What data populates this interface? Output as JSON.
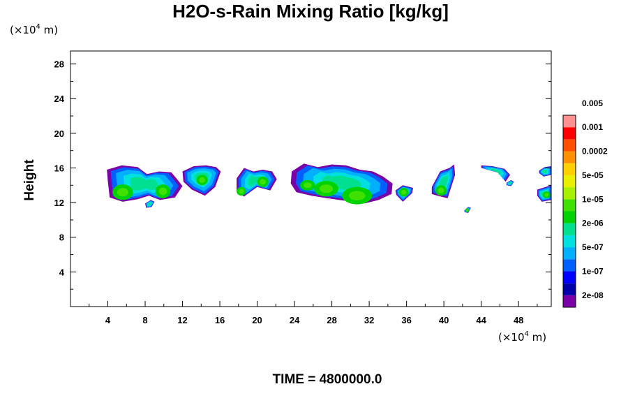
{
  "chart_data": {
    "type": "heatmap",
    "title": "H2O-s-Rain Mixing Ratio [kg/kg]",
    "ylabel": "Height",
    "unit_prefix": "(×10",
    "unit_exp": "4",
    "unit_suffix": " m)",
    "xlim": [
      0,
      51.5
    ],
    "ylim": [
      0,
      29.5
    ],
    "x_ticks": [
      4,
      8,
      12,
      16,
      20,
      24,
      28,
      32,
      36,
      40,
      44,
      48
    ],
    "y_ticks": [
      4,
      8,
      12,
      16,
      20,
      24,
      28
    ],
    "time_label": "TIME = 4800000.0",
    "legend": {
      "labels": [
        "2e-08",
        "1e-07",
        "5e-07",
        "2e-06",
        "1e-05",
        "5e-05",
        "0.0002",
        "0.001",
        "0.005"
      ],
      "colors": [
        "#7a00a8",
        "#0000aa",
        "#0000ff",
        "#0060ff",
        "#00b0ff",
        "#00e0e0",
        "#00e090",
        "#00d200",
        "#40e000",
        "#a8f000",
        "#e8f000",
        "#ffd000",
        "#ff9000",
        "#ff5000",
        "#ff0000",
        "#ff9090"
      ]
    },
    "clouds": [
      {
        "x": [
          3.9,
          5.5,
          7.2,
          8.2,
          9.5,
          10.8,
          11.5,
          12.0,
          11.2,
          9.6,
          8.4,
          7.2,
          5.6,
          4.2,
          4.0
        ],
        "ytop": [
          15.8,
          16.3,
          16.1,
          15.3,
          15.6,
          15.5,
          14.6,
          13.9,
          12.6,
          12.3,
          12.8,
          12.4,
          12.1,
          12.6,
          14.5
        ],
        "core": [
          [
            5.6,
            13.2,
            1.1,
            0.9
          ],
          [
            9.9,
            13.3,
            0.8,
            0.8
          ]
        ]
      },
      {
        "x": [
          12.0,
          13.2,
          14.5,
          15.6,
          16.1,
          15.5,
          14.4,
          13.0,
          12.1
        ],
        "ytop": [
          15.6,
          16.2,
          16.3,
          16.1,
          15.6,
          13.8,
          12.8,
          13.5,
          14.4
        ],
        "core": [
          [
            14.1,
            14.6,
            0.6,
            0.6
          ]
        ]
      },
      {
        "x": [
          17.8,
          18.6,
          19.6,
          20.6,
          21.6,
          22.1,
          21.4,
          20.0,
          18.6,
          17.8
        ],
        "ytop": [
          14.8,
          16.0,
          15.6,
          15.8,
          15.6,
          14.7,
          13.4,
          13.8,
          12.7,
          13.2
        ],
        "core": [
          [
            18.3,
            13.3,
            0.5,
            0.5
          ],
          [
            20.6,
            14.4,
            0.6,
            0.6
          ]
        ]
      },
      {
        "x": [
          23.7,
          25.0,
          26.5,
          28.0,
          29.5,
          31.0,
          32.4,
          33.5,
          34.5,
          34.4,
          33.0,
          31.5,
          29.5,
          27.5,
          25.8,
          24.2,
          23.6
        ],
        "ytop": [
          15.6,
          16.5,
          16.1,
          16.4,
          16.3,
          15.8,
          15.6,
          15.0,
          14.2,
          13.0,
          12.3,
          11.9,
          12.2,
          12.5,
          12.8,
          13.2,
          14.2
        ],
        "core": [
          [
            27.4,
            13.6,
            1.3,
            0.9
          ],
          [
            30.7,
            12.8,
            1.6,
            1.0
          ],
          [
            25.4,
            14.0,
            0.8,
            0.6
          ]
        ]
      },
      {
        "x": [
          34.8,
          35.6,
          36.7,
          36.6,
          35.6,
          34.9
        ],
        "ytop": [
          13.4,
          14.0,
          13.7,
          13.1,
          12.1,
          12.9
        ],
        "core": [
          [
            35.7,
            13.2,
            0.5,
            0.5
          ]
        ]
      },
      {
        "x": [
          38.7,
          39.6,
          40.6,
          41.1,
          41.2,
          40.4,
          39.3,
          38.7
        ],
        "ytop": [
          13.8,
          15.6,
          16.0,
          16.4,
          15.2,
          12.5,
          12.8,
          13.0
        ],
        "core": [
          [
            39.7,
            13.4,
            0.6,
            0.6
          ]
        ]
      },
      {
        "x": [
          44.0,
          45.2,
          46.5,
          47.1,
          46.6,
          46.0,
          45.0,
          44.0
        ],
        "ytop": [
          16.3,
          16.2,
          15.9,
          15.2,
          14.4,
          15.4,
          15.7,
          16.0
        ],
        "core": []
      },
      {
        "x": [
          50.0,
          51.5,
          51.5,
          50.5,
          50.0
        ],
        "ytop": [
          13.5,
          14.0,
          12.3,
          12.1,
          12.8
        ],
        "core": [
          [
            51.0,
            12.9,
            0.4,
            0.4
          ]
        ]
      },
      {
        "x": [
          50.2,
          50.8,
          51.5,
          51.5,
          50.7,
          50.2
        ],
        "ytop": [
          15.7,
          16.1,
          16.2,
          15.2,
          15.0,
          15.4
        ],
        "core": []
      },
      {
        "x": [
          8.0,
          8.6,
          9.0,
          8.7,
          8.1
        ],
        "ytop": [
          11.9,
          12.3,
          12.1,
          11.5,
          11.4
        ],
        "core": []
      },
      {
        "x": [
          42.2,
          42.6,
          42.9,
          42.6,
          42.2
        ],
        "ytop": [
          11.1,
          11.5,
          11.4,
          10.8,
          10.9
        ],
        "core": [
          [
            42.5,
            11.1,
            0.2,
            0.2
          ]
        ]
      },
      {
        "x": [
          46.7,
          47.2,
          47.5,
          47.2,
          46.7
        ],
        "ytop": [
          14.3,
          14.6,
          14.4,
          13.9,
          14.0
        ],
        "core": []
      }
    ]
  }
}
